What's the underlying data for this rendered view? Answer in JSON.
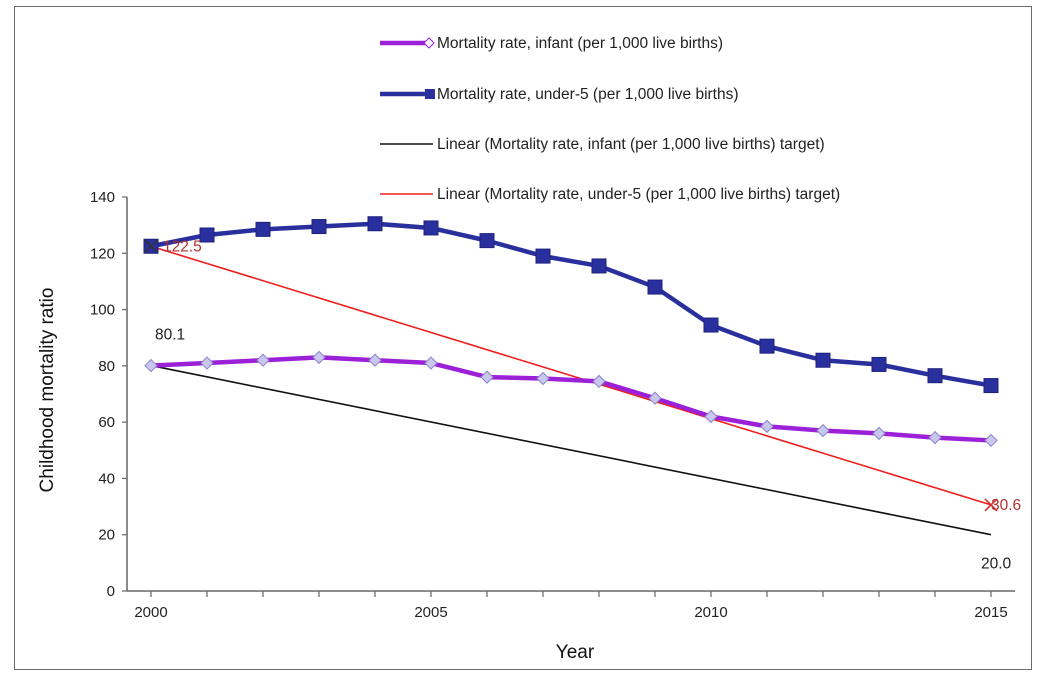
{
  "chart_data": {
    "type": "line",
    "title": "",
    "xlabel": "Year",
    "ylabel": "Childhood mortality ratio",
    "xlim": [
      2000,
      2015
    ],
    "ylim": [
      0,
      140
    ],
    "xticks": [
      2000,
      2005,
      2010,
      2015
    ],
    "yticks": [
      0,
      20,
      40,
      60,
      80,
      100,
      120,
      140
    ],
    "grid": false,
    "legend_position": "top",
    "x": [
      2000,
      2001,
      2002,
      2003,
      2004,
      2005,
      2006,
      2007,
      2008,
      2009,
      2010,
      2011,
      2012,
      2013,
      2014,
      2015
    ],
    "series": [
      {
        "name": "Mortality rate, infant (per 1,000 live births)",
        "color": "#9b20d8",
        "marker": "diamond",
        "values": [
          80.1,
          81,
          82,
          83,
          82,
          81,
          76,
          75.5,
          74.5,
          68.5,
          62,
          58.5,
          57,
          56,
          54.5,
          53.5
        ]
      },
      {
        "name": "Mortality rate, under-5 (per 1,000 live births)",
        "color": "#2a2f9e",
        "marker": "square",
        "values": [
          122.5,
          126.5,
          128.5,
          129.5,
          130.5,
          129,
          124.5,
          119,
          115.5,
          108,
          94.5,
          87,
          82,
          80.5,
          76.5,
          73
        ]
      },
      {
        "name": "Linear (Mortality rate, infant (per 1,000 live births) target)",
        "color": "#111111",
        "marker": "none",
        "x": [
          2000,
          2015
        ],
        "values": [
          80.1,
          20.0
        ]
      },
      {
        "name": "Linear (Mortality rate, under-5 (per 1,000 live births) target)",
        "color": "#ee2020",
        "marker": "none",
        "x": [
          2000,
          2015
        ],
        "values": [
          122.5,
          30.6
        ]
      }
    ],
    "annotations": [
      {
        "text": "122.5",
        "x": 2000,
        "y": 122.5,
        "color": "#b03030"
      },
      {
        "text": "80.1",
        "x": 2000,
        "y": 80.1,
        "color": "#222222"
      },
      {
        "text": "30.6",
        "x": 2015,
        "y": 30.6,
        "color": "#b03030"
      },
      {
        "text": "20.0",
        "x": 2015,
        "y": 20.0,
        "color": "#222222"
      }
    ]
  }
}
